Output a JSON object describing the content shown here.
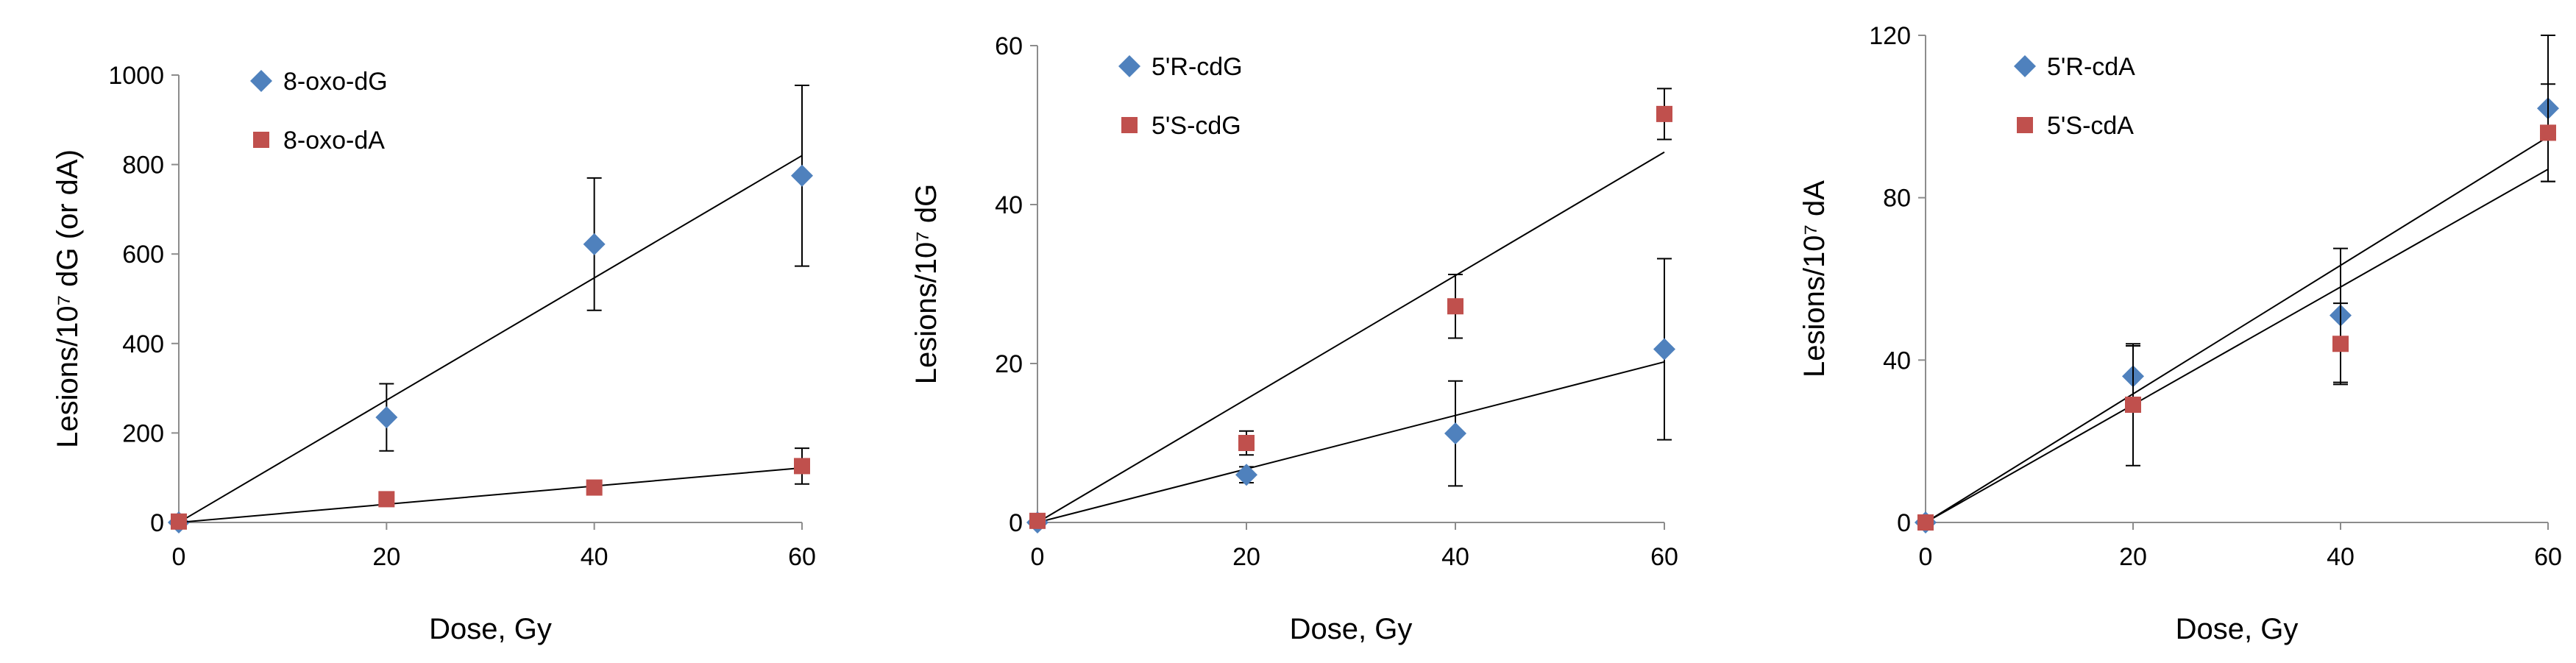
{
  "chart_data": [
    {
      "type": "scatter",
      "title": "",
      "xlabel": "Dose, Gy",
      "ylabel": "Lesions/10⁷ dG (or dA)",
      "xlim": [
        0,
        60
      ],
      "ylim": [
        0,
        1000
      ],
      "xticks": [
        0,
        20,
        40,
        60
      ],
      "yticks": [
        0,
        200,
        400,
        600,
        800,
        1000
      ],
      "x_tick_labels": [
        "0",
        "20",
        "40",
        "60"
      ],
      "y_tick_labels": [
        "0",
        "200",
        "400",
        "600",
        "800",
        "1000"
      ],
      "grid": false,
      "legend_position": "top-left",
      "series": [
        {
          "name": "8-oxo-dG",
          "marker": "diamond",
          "color": "#4f81bd",
          "x": [
            0,
            20,
            40,
            60
          ],
          "y": [
            0,
            235,
            622,
            775
          ],
          "error": [
            0,
            75,
            148,
            202
          ],
          "fit": [
            0,
            820
          ]
        },
        {
          "name": "8-oxo-dA",
          "marker": "square",
          "color": "#c0504d",
          "x": [
            0,
            20,
            40,
            60
          ],
          "y": [
            2,
            52,
            78,
            126
          ],
          "error": [
            0,
            0,
            14,
            40
          ],
          "fit": [
            0,
            122
          ]
        }
      ]
    },
    {
      "type": "scatter",
      "title": "",
      "xlabel": "Dose, Gy",
      "ylabel": "Lesions/10⁷ dG",
      "xlim": [
        0,
        60
      ],
      "ylim": [
        0,
        60
      ],
      "xticks": [
        0,
        20,
        40,
        60
      ],
      "yticks": [
        0,
        20,
        40,
        60
      ],
      "x_tick_labels": [
        "0",
        "20",
        "40",
        "60"
      ],
      "y_tick_labels": [
        "0",
        "20",
        "40",
        "60"
      ],
      "grid": false,
      "legend_position": "top-left",
      "series": [
        {
          "name": "5'R-cdG",
          "marker": "diamond",
          "color": "#4f81bd",
          "x": [
            0,
            20,
            40,
            60
          ],
          "y": [
            0,
            6,
            11.2,
            21.8
          ],
          "error": [
            0,
            1,
            6.6,
            11.4
          ],
          "fit": [
            0,
            20.2
          ]
        },
        {
          "name": "5'S-cdG",
          "marker": "square",
          "color": "#c0504d",
          "x": [
            0,
            20,
            40,
            60
          ],
          "y": [
            0.2,
            10,
            27.2,
            51.4
          ],
          "error": [
            0,
            1.5,
            4,
            3.2
          ],
          "fit": [
            0,
            46.6
          ]
        }
      ]
    },
    {
      "type": "scatter",
      "title": "",
      "xlabel": "Dose, Gy",
      "ylabel": "Lesions/10⁷ dA",
      "xlim": [
        0,
        60
      ],
      "ylim": [
        0,
        120
      ],
      "xticks": [
        0,
        20,
        40,
        60
      ],
      "yticks": [
        0,
        40,
        80,
        120
      ],
      "x_tick_labels": [
        "0",
        "20",
        "40",
        "60"
      ],
      "y_tick_labels": [
        "0",
        "40",
        "80",
        "120"
      ],
      "grid": false,
      "legend_position": "top-left",
      "series": [
        {
          "name": "5'R-cdA",
          "marker": "diamond",
          "color": "#4f81bd",
          "x": [
            0,
            20,
            40,
            60
          ],
          "y": [
            0,
            36,
            51,
            102
          ],
          "error": [
            0,
            7.5,
            16.5,
            18
          ],
          "fit": [
            0,
            95
          ]
        },
        {
          "name": "5'S-cdA",
          "marker": "square",
          "color": "#c0504d",
          "x": [
            0,
            20,
            40,
            60
          ],
          "y": [
            0,
            29,
            44,
            96
          ],
          "error": [
            0,
            15,
            10,
            12
          ],
          "fit": [
            0,
            87
          ]
        }
      ]
    }
  ]
}
